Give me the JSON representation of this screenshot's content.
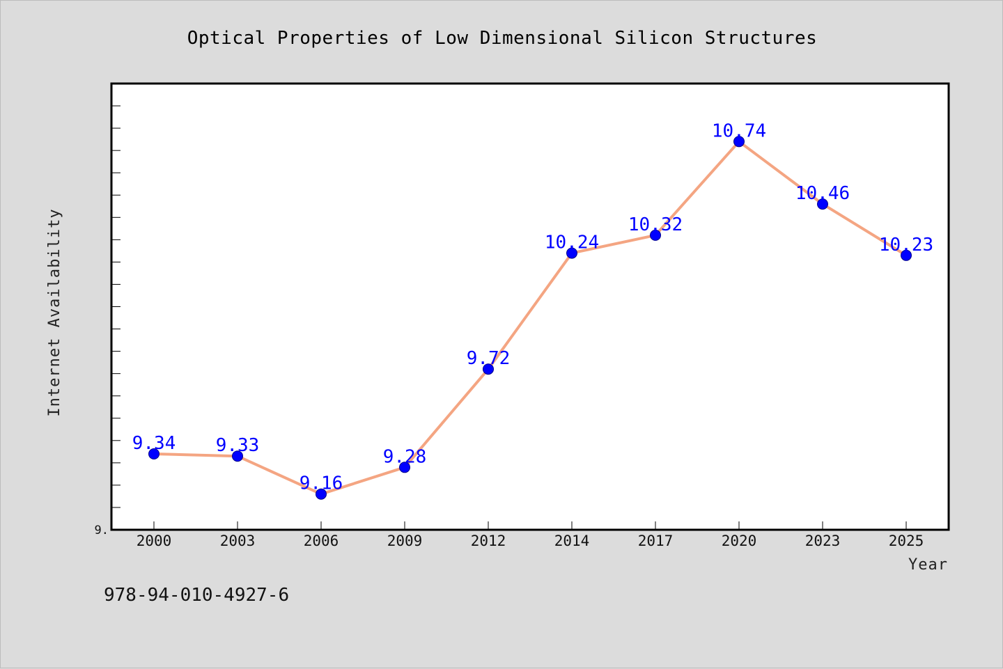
{
  "chart_data": {
    "type": "line",
    "title": "Optical Properties of Low Dimensional Silicon Structures",
    "xlabel": "Year",
    "ylabel": "Internet Availability",
    "categories": [
      "2000",
      "2003",
      "2006",
      "2009",
      "2012",
      "2014",
      "2017",
      "2020",
      "2023",
      "2025"
    ],
    "values": [
      9.34,
      9.33,
      9.16,
      9.28,
      9.72,
      10.24,
      10.32,
      10.74,
      10.46,
      10.23
    ],
    "data_labels": [
      "9.34",
      "9.33",
      "9.16",
      "9.28",
      "9.72",
      "10.24",
      "10.32",
      "10.74",
      "10.46",
      "10.23"
    ],
    "y_tick_labels": [
      "9."
    ],
    "ylim": [
      9.0,
      11.0
    ],
    "grid": false,
    "legend": "none",
    "line_color": "#f4a582",
    "marker_color": "#0000ff",
    "plot_background": "#ffffff",
    "page_background": "#dcdcdc"
  },
  "footnote": "978-94-010-4927-6"
}
